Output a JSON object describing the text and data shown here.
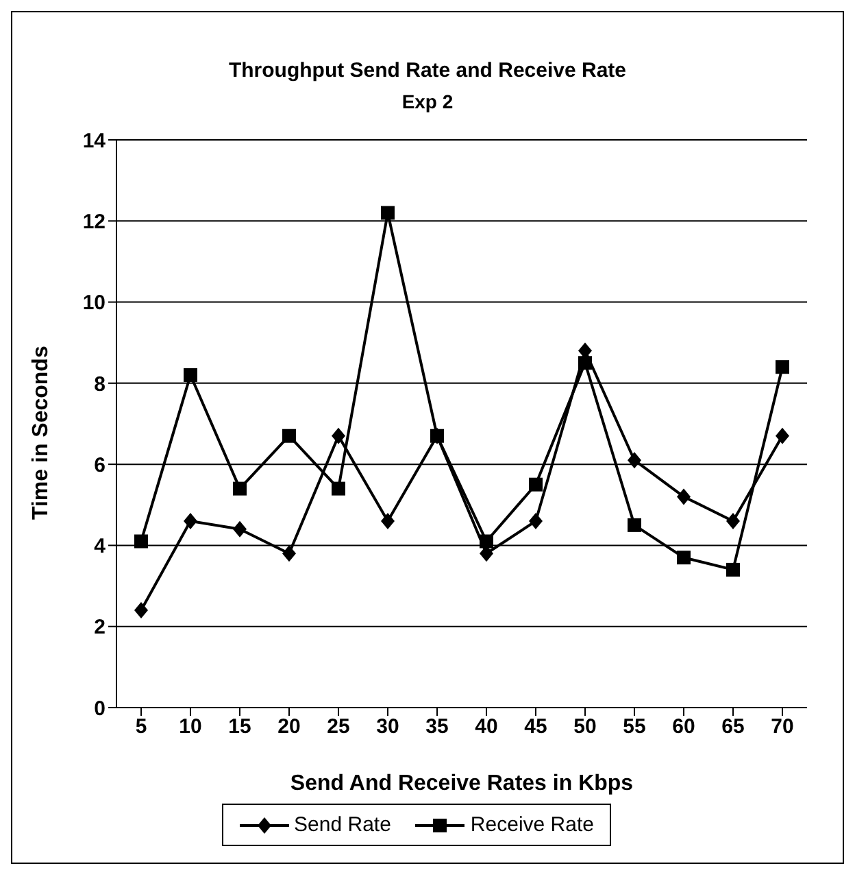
{
  "chart_data": {
    "type": "line",
    "title": "Throughput Send Rate and Receive Rate",
    "subtitle": "Exp 2",
    "xlabel": "Send And Receive Rates in Kbps",
    "ylabel": "Time in Seconds",
    "categories": [
      "5",
      "10",
      "15",
      "20",
      "25",
      "30",
      "35",
      "40",
      "45",
      "50",
      "55",
      "60",
      "65",
      "70"
    ],
    "series": [
      {
        "name": "Send Rate",
        "color": "#000000",
        "marker": "diamond",
        "values": [
          2.4,
          4.6,
          4.4,
          3.8,
          6.7,
          4.6,
          6.7,
          3.8,
          4.6,
          8.8,
          6.1,
          5.2,
          4.6,
          6.7
        ]
      },
      {
        "name": "Receive Rate",
        "color": "#000000",
        "marker": "square",
        "values": [
          4.1,
          8.2,
          5.4,
          6.7,
          5.4,
          12.2,
          6.7,
          4.1,
          5.5,
          8.5,
          4.5,
          3.7,
          3.4,
          8.4
        ]
      }
    ],
    "ylim": [
      0,
      14
    ],
    "yticks": [
      0,
      2,
      4,
      6,
      8,
      10,
      12,
      14
    ],
    "grid": "y",
    "legend": "bottom",
    "line_style": "solid"
  }
}
